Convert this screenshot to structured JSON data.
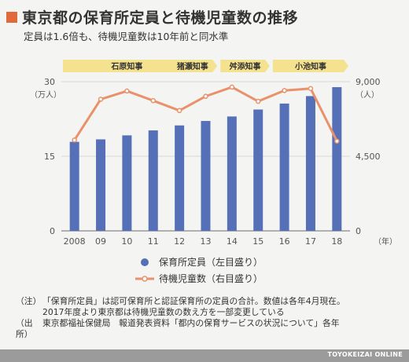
{
  "title": "東京都の保育所定員と待機児童数の推移",
  "subtitle": "定員は1.6倍も、待機児童数は10年前と同水準",
  "colors": {
    "accent": "#e06a3a",
    "bar": "#5670b8",
    "line": "#e8916b",
    "era": "#f5e28f"
  },
  "eras": [
    {
      "label": "石原知事",
      "from": "2008",
      "to": "12"
    },
    {
      "label": "猪瀬知事",
      "from": "12",
      "to": "13"
    },
    {
      "label": "舛添知事",
      "from": "14",
      "to": "15"
    },
    {
      "label": "小池知事",
      "from": "16",
      "to": "18"
    }
  ],
  "chart_data": {
    "type": "bar",
    "categories": [
      "2008",
      "09",
      "10",
      "11",
      "12",
      "13",
      "14",
      "15",
      "16",
      "17",
      "18"
    ],
    "series": [
      {
        "name": "保育所定員（左目盛り）",
        "type": "bar",
        "axis": "left",
        "values": [
          17.9,
          18.4,
          19.2,
          20.2,
          21.2,
          22.1,
          23.0,
          24.4,
          25.6,
          27.1,
          28.9
        ]
      },
      {
        "name": "待機児童数（右目盛り）",
        "type": "line",
        "axis": "right",
        "values": [
          5479,
          7939,
          8435,
          7855,
          7257,
          8117,
          8672,
          7814,
          8466,
          8586,
          5414
        ]
      }
    ],
    "y_left": {
      "min": 0,
      "max": 30,
      "ticks": [
        "0",
        "15",
        "30"
      ],
      "unit": "（万人）"
    },
    "y_right": {
      "min": 0,
      "max": 9000,
      "ticks": [
        "0",
        "4,500",
        "9,000"
      ],
      "unit": "（人）"
    },
    "x_unit": "（年）",
    "grid": true,
    "legend": "bottom"
  },
  "notes": [
    {
      "label": "（注）",
      "lines": [
        "「保育所定員」は認可保育所と認証保育所の定員の合計。数値は各年4月現在。",
        "2017年度より東京都は待機児童数の数え方を一部変更している"
      ]
    },
    {
      "label": "（出所）",
      "lines": [
        "東京都福祉保健局　報道発表資料「都内の保育サービスの状況について」各年"
      ]
    }
  ],
  "credit": "TOYOKEIZAI ONLINE"
}
